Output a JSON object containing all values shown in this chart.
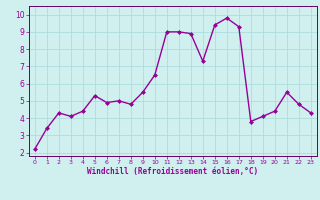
{
  "x": [
    0,
    1,
    2,
    3,
    4,
    5,
    6,
    7,
    8,
    9,
    10,
    11,
    12,
    13,
    14,
    15,
    16,
    17,
    18,
    19,
    20,
    21,
    22,
    23
  ],
  "y": [
    2.2,
    3.4,
    4.3,
    4.1,
    4.4,
    5.3,
    4.9,
    5.0,
    4.8,
    5.5,
    6.5,
    9.0,
    9.0,
    8.9,
    7.3,
    9.4,
    9.8,
    9.3,
    3.8,
    4.1,
    4.4,
    5.5,
    4.8,
    4.3
  ],
  "line_color": "#990099",
  "marker": "D",
  "marker_size": 2,
  "bg_color": "#cff0ee",
  "grid_color": "#aadddd",
  "xlabel": "Windchill (Refroidissement éolien,°C)",
  "ylabel": "",
  "ylim": [
    1.8,
    10.5
  ],
  "xlim": [
    -0.5,
    23.5
  ],
  "yticks": [
    2,
    3,
    4,
    5,
    6,
    7,
    8,
    9,
    10
  ],
  "xticks": [
    0,
    1,
    2,
    3,
    4,
    5,
    6,
    7,
    8,
    9,
    10,
    11,
    12,
    13,
    14,
    15,
    16,
    17,
    18,
    19,
    20,
    21,
    22,
    23
  ],
  "xlabel_color": "#990099",
  "tick_color": "#990099",
  "spine_color": "#660066",
  "linewidth": 1.0
}
